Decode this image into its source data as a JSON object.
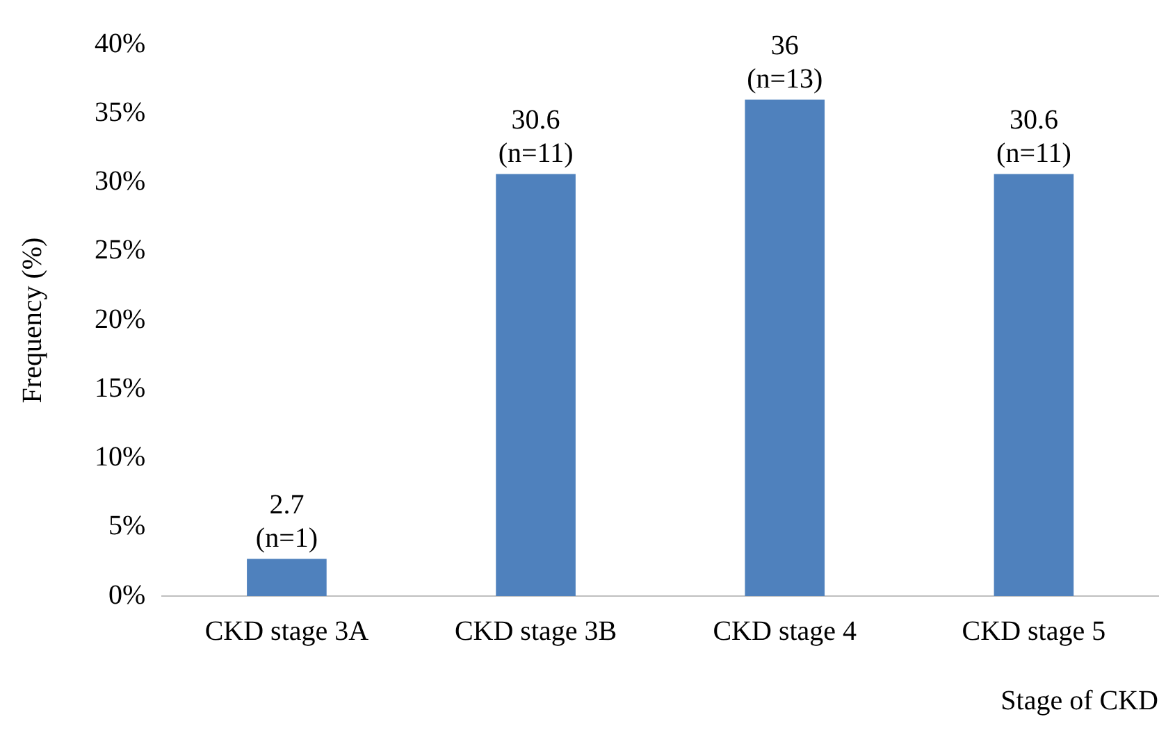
{
  "chart_data": {
    "type": "bar",
    "categories": [
      "CKD stage 3A",
      "CKD stage 3B",
      "CKD stage 4",
      "CKD stage 5"
    ],
    "values": [
      2.7,
      30.6,
      36,
      30.6
    ],
    "color": "#4f81bd",
    "value_labels": [
      "2.7\n(n=1)",
      "30.6\n(n=11)",
      "36\n(n=13)",
      "30.6\n(n=11)"
    ],
    "xlabel": "Stage of CKD",
    "ylabel": "Frequency (%)",
    "ylim": [
      0,
      40
    ],
    "yticks": [
      {
        "value": 0,
        "label": "0%"
      },
      {
        "value": 5,
        "label": "5%"
      },
      {
        "value": 10,
        "label": "10%"
      },
      {
        "value": 15,
        "label": "15%"
      },
      {
        "value": 20,
        "label": "20%"
      },
      {
        "value": 25,
        "label": "25%"
      },
      {
        "value": 30,
        "label": "30%"
      },
      {
        "value": 35,
        "label": "35%"
      },
      {
        "value": 40,
        "label": "40%"
      }
    ],
    "grid": false,
    "legend": false
  }
}
